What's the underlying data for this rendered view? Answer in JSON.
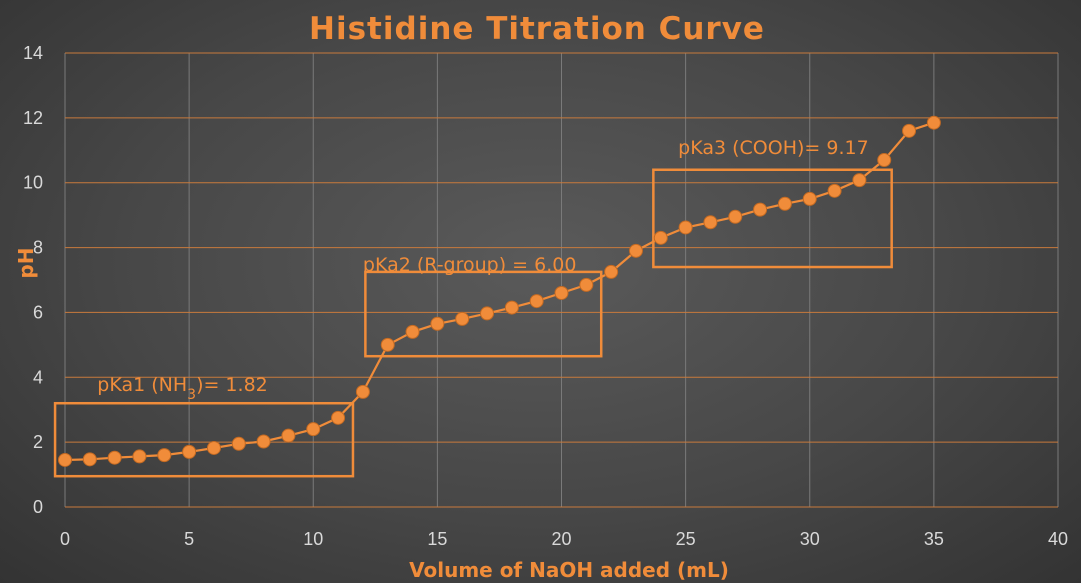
{
  "colors": {
    "accent": "#F08C3A",
    "grid_horizontal": "#C87A3C",
    "grid_vertical": "#7a7a7a",
    "tick_text": "#D9D9D9",
    "background": "#474747"
  },
  "chart_data": {
    "type": "scatter",
    "title": "Histidine Titration Curve",
    "xlabel": "Volume of NaOH added  (mL)",
    "ylabel": "pH",
    "xlim": [
      0,
      40
    ],
    "ylim": [
      0,
      14
    ],
    "xticks": [
      "0",
      "5",
      "10",
      "15",
      "20",
      "25",
      "30",
      "35",
      "40"
    ],
    "yticks": [
      "0",
      "2",
      "4",
      "6",
      "8",
      "10",
      "12",
      "14"
    ],
    "grid": true,
    "series": [
      {
        "x": [
          0,
          1,
          2,
          3,
          4,
          5,
          6,
          7,
          8,
          9,
          10,
          11,
          12,
          13,
          14,
          15,
          16,
          17,
          18,
          19,
          20,
          21,
          22,
          23,
          24,
          25,
          26,
          27,
          28,
          29,
          30,
          31,
          32,
          33,
          34,
          35
        ],
        "y": [
          1.45,
          1.47,
          1.52,
          1.56,
          1.6,
          1.7,
          1.82,
          1.95,
          2.02,
          2.2,
          2.4,
          2.75,
          3.55,
          5.0,
          5.4,
          5.65,
          5.8,
          5.97,
          6.15,
          6.35,
          6.6,
          6.85,
          7.25,
          7.9,
          8.3,
          8.62,
          8.78,
          8.95,
          9.17,
          9.35,
          9.5,
          9.75,
          10.08,
          10.7,
          11.6,
          11.85
        ]
      }
    ],
    "annotations": [
      {
        "label_parts": [
          {
            "text": "pKa1 (NH"
          },
          {
            "text": "3",
            "sub": true
          },
          {
            "text": ")= 1.82"
          }
        ],
        "label_at": [
          1.3,
          3.8
        ],
        "box": {
          "x0": -0.4,
          "x1": 11.6,
          "y0": 0.95,
          "y1": 3.2
        }
      },
      {
        "label_parts": [
          {
            "text": "pKa2 (R-group) = 6.00"
          }
        ],
        "label_at": [
          12.0,
          7.5
        ],
        "box": {
          "x0": 12.1,
          "x1": 21.6,
          "y0": 4.65,
          "y1": 7.25
        }
      },
      {
        "label_parts": [
          {
            "text": "pKa3 (COOH)= 9.17"
          }
        ],
        "label_at": [
          24.7,
          11.1
        ],
        "box": {
          "x0": 23.7,
          "x1": 33.3,
          "y0": 7.4,
          "y1": 10.4
        }
      }
    ]
  }
}
